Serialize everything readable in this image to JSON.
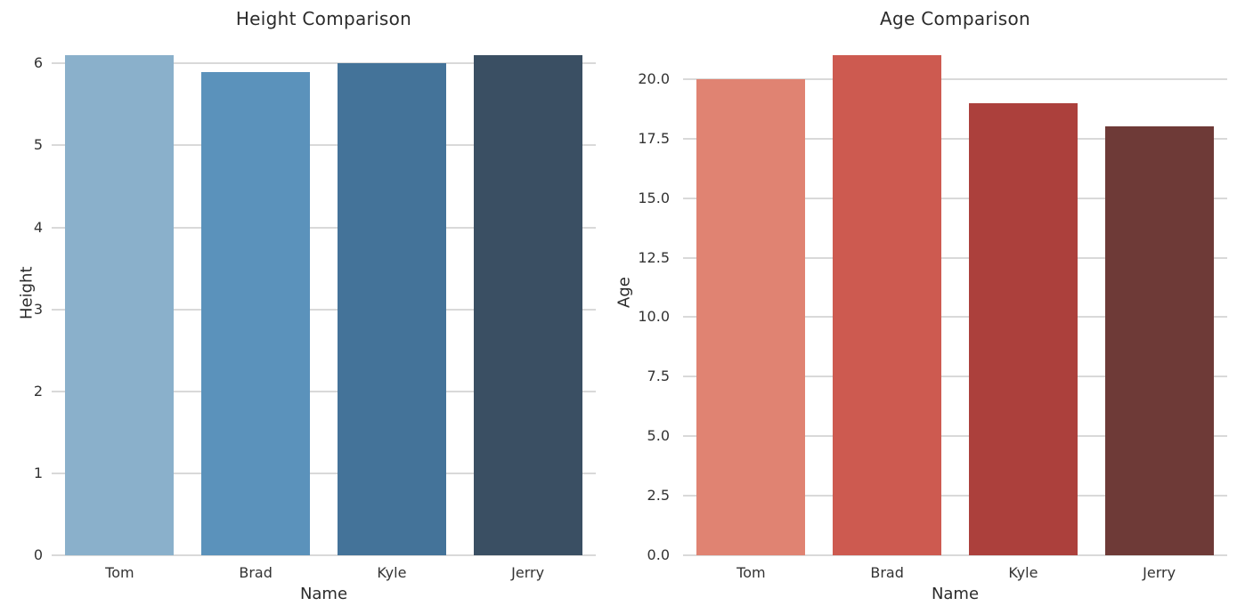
{
  "colors": {
    "background": "#ffffff",
    "grid": "#d9d9d9",
    "text": "#262626",
    "tick_text": "#333333"
  },
  "chart_data": [
    {
      "type": "bar",
      "title": "Height Comparison",
      "xlabel": "Name",
      "ylabel": "Height",
      "categories": [
        "Tom",
        "Brad",
        "Kyle",
        "Jerry"
      ],
      "values": [
        6.1,
        5.9,
        6.0,
        6.1
      ],
      "bar_colors": [
        "#8ab0cb",
        "#5b92bb",
        "#447399",
        "#3a4f63"
      ],
      "ylim": [
        0,
        6.405
      ],
      "yticks": [
        0,
        1,
        2,
        3,
        4,
        5,
        6
      ],
      "ytick_labels": [
        "0",
        "1",
        "2",
        "3",
        "4",
        "5",
        "6"
      ],
      "grid": true,
      "legend": "none"
    },
    {
      "type": "bar",
      "title": "Age Comparison",
      "xlabel": "Name",
      "ylabel": "Age",
      "categories": [
        "Tom",
        "Brad",
        "Kyle",
        "Jerry"
      ],
      "values": [
        20,
        21,
        19,
        18
      ],
      "bar_colors": [
        "#e08372",
        "#cd5a50",
        "#ac403c",
        "#6e3a37"
      ],
      "ylim": [
        0,
        22.05
      ],
      "yticks": [
        0,
        2.5,
        5,
        7.5,
        10,
        12.5,
        15,
        17.5,
        20
      ],
      "ytick_labels": [
        "0.0",
        "2.5",
        "5.0",
        "7.5",
        "10.0",
        "12.5",
        "15.0",
        "17.5",
        "20.0"
      ],
      "grid": true,
      "legend": "none"
    }
  ]
}
